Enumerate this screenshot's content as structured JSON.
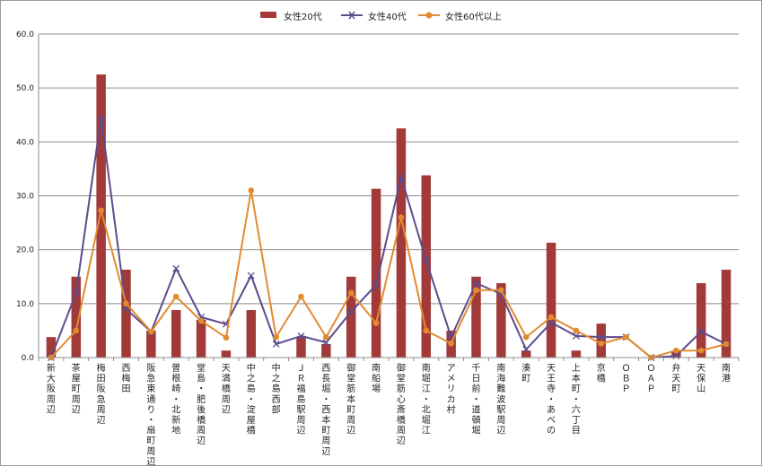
{
  "chart_data": {
    "type": "bar",
    "categories": [
      "新大阪周辺",
      "茶屋町周辺",
      "梅田阪急周辺",
      "西梅田",
      "阪急東通り・扇町周辺",
      "曽根崎・北新地",
      "堂島・肥後橋周辺",
      "天満橋周辺",
      "中之島・淀屋橋",
      "中之島西部",
      "ＪＲ福島駅周辺",
      "西長堀・西本町周辺",
      "御堂筋本町周辺",
      "南船場",
      "御堂筋心斎橋周辺",
      "南堀江・北堀江",
      "アメリカ村",
      "千日前・道頓堀",
      "南海難波駅周辺",
      "湊町",
      "天王寺・あべの",
      "上本町・六丁目",
      "京橋",
      "ＯＢＰ",
      "ＯＡＰ",
      "弁天町",
      "天保山",
      "南港"
    ],
    "series": [
      {
        "name": "女性20代",
        "type": "bar",
        "color": "#a33a3a",
        "values": [
          3.8,
          15.0,
          52.5,
          16.3,
          5.0,
          8.8,
          7.0,
          1.3,
          8.8,
          0,
          3.8,
          2.5,
          15.0,
          31.3,
          42.5,
          33.8,
          5.0,
          15.0,
          13.8,
          1.3,
          21.3,
          1.3,
          6.3,
          0,
          0,
          1.3,
          13.8,
          16.3
        ]
      },
      {
        "name": "女性40代",
        "type": "line",
        "marker": "x",
        "color": "#5e4a8c",
        "values": [
          0,
          12.0,
          44.5,
          9.0,
          4.8,
          16.5,
          7.5,
          6.2,
          15.2,
          2.5,
          4.0,
          2.8,
          8.5,
          13.5,
          33.5,
          18.0,
          3.8,
          13.8,
          11.8,
          1.5,
          6.5,
          4.0,
          3.8,
          3.8,
          0,
          0.3,
          4.8,
          2.5
        ]
      },
      {
        "name": "女性60代以上",
        "type": "line",
        "marker": "circle",
        "color": "#e18b30",
        "values": [
          0,
          5.0,
          27.3,
          10.0,
          4.8,
          11.3,
          6.8,
          3.7,
          31.0,
          3.8,
          11.3,
          3.8,
          12.0,
          6.4,
          26.0,
          5.0,
          2.6,
          12.5,
          12.5,
          3.8,
          7.5,
          5.0,
          2.6,
          3.8,
          0,
          1.3,
          1.3,
          2.5
        ]
      }
    ],
    "yticks": [
      "0.0",
      "10.0",
      "20.0",
      "30.0",
      "40.0",
      "50.0",
      "60.0"
    ],
    "ylim": [
      0,
      60
    ],
    "grid": true,
    "legend_position": "top"
  }
}
